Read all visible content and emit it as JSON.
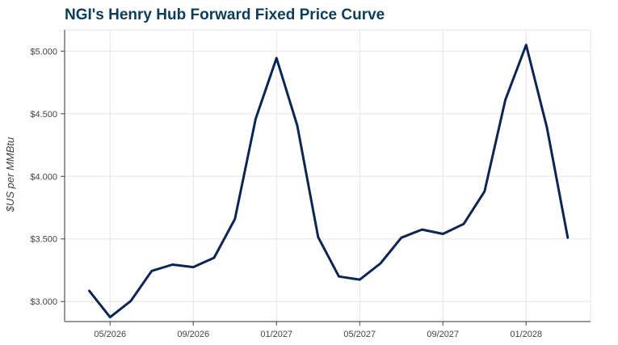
{
  "chart_data": {
    "type": "line",
    "title": "NGI's Henry Hub Forward Fixed Price Curve",
    "xlabel": "",
    "ylabel": "$US per MMBtu",
    "x": [
      "2026-04",
      "2026-05",
      "2026-06",
      "2026-07",
      "2026-08",
      "2026-09",
      "2026-10",
      "2026-11",
      "2026-12",
      "2027-01",
      "2027-02",
      "2027-03",
      "2027-04",
      "2027-05",
      "2027-06",
      "2027-07",
      "2027-08",
      "2027-09",
      "2027-10",
      "2027-11",
      "2027-12",
      "2028-01",
      "2028-02",
      "2028-03"
    ],
    "series": [
      {
        "name": "",
        "values": [
          3.085,
          2.875,
          3.005,
          3.245,
          3.295,
          3.275,
          3.35,
          3.66,
          4.46,
          4.945,
          4.405,
          3.515,
          3.2,
          3.175,
          3.305,
          3.51,
          3.575,
          3.54,
          3.62,
          3.88,
          4.61,
          5.05,
          4.39,
          3.51
        ]
      }
    ],
    "x_ticks": [
      "05/2026",
      "09/2026",
      "01/2027",
      "05/2027",
      "09/2027",
      "01/2028"
    ],
    "y_ticks": [
      "$3.000",
      "$3.500",
      "$4.000",
      "$4.500",
      "$5.000"
    ],
    "ylim": [
      2.84,
      5.17
    ],
    "grid": true,
    "legend": "none",
    "line_color": "#0b2559"
  }
}
